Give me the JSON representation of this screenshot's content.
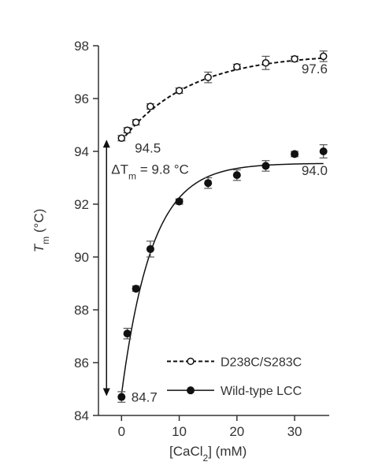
{
  "chart_data": {
    "type": "scatter",
    "xlabel_main": "[CaCl",
    "xlabel_sub": "2",
    "xlabel_tail": "] (mM)",
    "ylabel_main": "T",
    "ylabel_sub": "m",
    "ylabel_tail": " (°C)",
    "xlim": [
      -4,
      36
    ],
    "ylim": [
      84,
      98
    ],
    "xticks": [
      0,
      10,
      20,
      30
    ],
    "yticks": [
      84,
      86,
      88,
      90,
      92,
      94,
      96,
      98
    ],
    "series": [
      {
        "name": "D238C/S283C",
        "marker": "open-circle",
        "line": "dashed",
        "x": [
          0,
          1,
          2.5,
          5,
          10,
          15,
          20,
          25,
          30,
          35
        ],
        "y": [
          94.5,
          94.8,
          95.1,
          95.7,
          96.3,
          96.8,
          97.2,
          97.35,
          97.5,
          97.6
        ],
        "err": [
          0.1,
          0.1,
          0.1,
          0.1,
          0.1,
          0.2,
          0.1,
          0.25,
          0.1,
          0.2
        ],
        "fit": {
          "y0": 94.4,
          "amplitude": 3.3,
          "k": 0.085
        }
      },
      {
        "name": "Wild-type LCC",
        "marker": "filled-circle",
        "line": "solid",
        "x": [
          0,
          1,
          2.5,
          5,
          10,
          15,
          20,
          25,
          30,
          35
        ],
        "y": [
          84.7,
          87.1,
          88.8,
          90.3,
          92.1,
          92.8,
          93.1,
          93.45,
          93.9,
          94.0
        ],
        "err": [
          0.2,
          0.2,
          0.1,
          0.3,
          0.1,
          0.2,
          0.2,
          0.2,
          0.1,
          0.25
        ],
        "fit": {
          "y0": 84.8,
          "amplitude": 8.75,
          "k": 0.19
        }
      }
    ],
    "annotations": {
      "wt_start": "84.7",
      "wt_end": "94.0",
      "mut_start": "94.5",
      "mut_end": "97.6",
      "delta_prefix": "ΔT",
      "delta_sub": "m",
      "delta_value": " = 9.8 °C"
    },
    "legend_position": "bottom-right",
    "grid": false
  }
}
